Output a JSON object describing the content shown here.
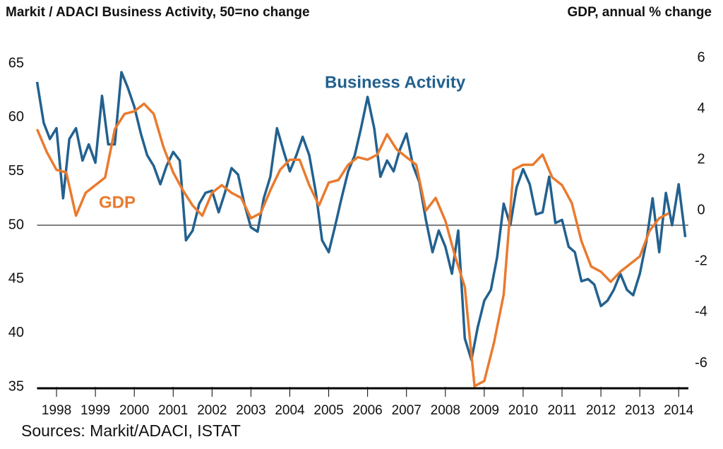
{
  "chart_data": {
    "type": "line",
    "title": "Markit / ADACI  Business Activity, 50=no change",
    "y2_title": "GDP, annual % change",
    "source": "Sources: Markit/ADACI, ISTAT",
    "xlim": [
      1998,
      2014.75
    ],
    "xticks": [
      {
        "value": 1998.5,
        "label": "1998"
      },
      {
        "value": 1999.5,
        "label": "1999"
      },
      {
        "value": 2000.5,
        "label": "2000"
      },
      {
        "value": 2001.5,
        "label": "2001"
      },
      {
        "value": 2002.5,
        "label": "2002"
      },
      {
        "value": 2003.5,
        "label": "2003"
      },
      {
        "value": 2004.5,
        "label": "2004"
      },
      {
        "value": 2005.5,
        "label": "2005"
      },
      {
        "value": 2006.5,
        "label": "2006"
      },
      {
        "value": 2007.5,
        "label": "2007"
      },
      {
        "value": 2008.5,
        "label": "2008"
      },
      {
        "value": 2009.5,
        "label": "2009"
      },
      {
        "value": 2010.5,
        "label": "2010"
      },
      {
        "value": 2011.5,
        "label": "2011"
      },
      {
        "value": 2012.5,
        "label": "2012"
      },
      {
        "value": 2013.5,
        "label": "2013"
      },
      {
        "value": 2014.5,
        "label": "2014"
      }
    ],
    "ylim": [
      35,
      65
    ],
    "yticks": [
      35,
      40,
      45,
      50,
      55,
      60,
      65
    ],
    "y2lim": [
      -6.93,
      5.78
    ],
    "y2ticks": [
      -6,
      -4,
      -2,
      0,
      2,
      4,
      6
    ],
    "reference_line": 50,
    "series": [
      {
        "name": "Business Activity",
        "color": "#22618f",
        "x": [
          1998,
          1998.17,
          1998.33,
          1998.5,
          1998.67,
          1998.83,
          1999,
          1999.17,
          1999.33,
          1999.5,
          1999.67,
          1999.83,
          2000,
          2000.17,
          2000.33,
          2000.5,
          2000.67,
          2000.83,
          2001,
          2001.17,
          2001.33,
          2001.5,
          2001.67,
          2001.83,
          2002,
          2002.17,
          2002.33,
          2002.5,
          2002.67,
          2002.83,
          2003,
          2003.17,
          2003.33,
          2003.5,
          2003.67,
          2003.83,
          2004,
          2004.17,
          2004.33,
          2004.5,
          2004.67,
          2004.83,
          2005,
          2005.17,
          2005.33,
          2005.5,
          2005.67,
          2005.83,
          2006,
          2006.17,
          2006.33,
          2006.5,
          2006.67,
          2006.83,
          2007,
          2007.17,
          2007.33,
          2007.5,
          2007.67,
          2007.83,
          2008,
          2008.17,
          2008.33,
          2008.5,
          2008.67,
          2008.83,
          2009,
          2009.17,
          2009.33,
          2009.5,
          2009.67,
          2009.83,
          2010,
          2010.17,
          2010.33,
          2010.5,
          2010.67,
          2010.83,
          2011,
          2011.17,
          2011.33,
          2011.5,
          2011.67,
          2011.83,
          2012,
          2012.17,
          2012.33,
          2012.5,
          2012.67,
          2012.83,
          2013,
          2013.17,
          2013.33,
          2013.5,
          2013.67,
          2013.83,
          2014,
          2014.17,
          2014.33,
          2014.5,
          2014.67
        ],
        "values": [
          63.3,
          59.5,
          58,
          59,
          52.5,
          58,
          59,
          56,
          57.5,
          55.8,
          62,
          57.5,
          57.5,
          64.2,
          62.8,
          61,
          58.5,
          56.5,
          55.5,
          53.8,
          55.5,
          56.8,
          56,
          48.6,
          49.5,
          52,
          53,
          53.2,
          51.2,
          53,
          55.3,
          54.7,
          52,
          49.8,
          49.4,
          52.5,
          54.5,
          59,
          57,
          55,
          56.5,
          58.2,
          56.5,
          53,
          48.6,
          47.5,
          50,
          52.5,
          55,
          56.5,
          59,
          61.9,
          59,
          54.5,
          56,
          55,
          57,
          58.5,
          55.5,
          54,
          50.5,
          47.5,
          49.5,
          48,
          45.5,
          49.5,
          39.5,
          37.5,
          40.5,
          43,
          44,
          47,
          52,
          50,
          53.5,
          55.2,
          53.8,
          51,
          51.2,
          54.5,
          50.2,
          50.5,
          48,
          47.5,
          44.8,
          45,
          44.5,
          42.5,
          43,
          44,
          45.5,
          44,
          43.5,
          45.5,
          48.5,
          52.5,
          47.5,
          53,
          50,
          53.8,
          48.9
        ]
      },
      {
        "name": "GDP",
        "color": "#ea7a2e",
        "axis": "y2",
        "x": [
          1998,
          1998.25,
          1998.5,
          1998.75,
          1999,
          1999.25,
          1999.5,
          1999.75,
          2000,
          2000.25,
          2000.5,
          2000.75,
          2001,
          2001.25,
          2001.5,
          2001.75,
          2002,
          2002.25,
          2002.5,
          2002.75,
          2003,
          2003.25,
          2003.5,
          2003.75,
          2004,
          2004.25,
          2004.5,
          2004.75,
          2005,
          2005.25,
          2005.5,
          2005.75,
          2006,
          2006.25,
          2006.5,
          2006.75,
          2007,
          2007.25,
          2007.5,
          2007.75,
          2008,
          2008.25,
          2008.5,
          2008.75,
          2009,
          2009.25,
          2009.5,
          2009.75,
          2010,
          2010.25,
          2010.5,
          2010.75,
          2011,
          2011.25,
          2011.5,
          2011.75,
          2012,
          2012.25,
          2012.5,
          2012.75,
          2013,
          2013.25,
          2013.5,
          2013.75,
          2014,
          2014.25
        ],
        "values": [
          3.2,
          2.3,
          1.6,
          1.5,
          -0.2,
          0.7,
          1.0,
          1.3,
          3.2,
          3.8,
          3.9,
          4.2,
          3.8,
          2.5,
          1.5,
          0.8,
          0.2,
          -0.2,
          0.7,
          1.0,
          0.7,
          0.5,
          -0.3,
          -0.1,
          0.8,
          1.6,
          2.0,
          2.0,
          1.0,
          0.2,
          1.1,
          1.2,
          1.8,
          2.1,
          2.0,
          2.2,
          3.0,
          2.4,
          2.1,
          1.8,
          0.0,
          0.5,
          -0.4,
          -1.8,
          -3.0,
          -6.9,
          -6.7,
          -5.2,
          -3.3,
          1.6,
          1.8,
          1.8,
          2.2,
          1.3,
          1.0,
          0.3,
          -1.2,
          -2.2,
          -2.4,
          -2.8,
          -2.4,
          -2.1,
          -1.8,
          -0.8,
          -0.3,
          -0.1
        ]
      }
    ]
  }
}
